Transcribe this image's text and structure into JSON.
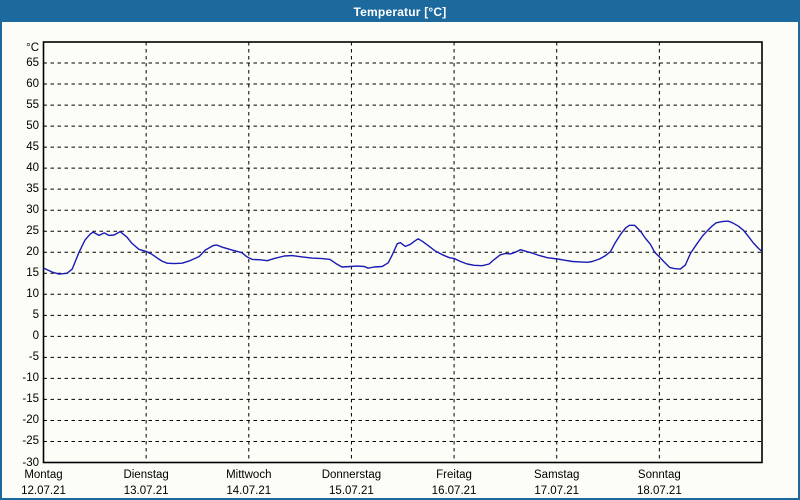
{
  "window": {
    "title": "Temperatur [°C]",
    "title_bar_color": "#1C699D",
    "border_color": "#1C699D",
    "background_color": "#FCFDF7"
  },
  "chart_data": {
    "type": "line",
    "title": "Temperatur [°C]",
    "ylabel": "°C",
    "xlabel": "",
    "ylim": [
      -30,
      70
    ],
    "y_ticks": [
      65,
      60,
      55,
      50,
      45,
      40,
      35,
      30,
      25,
      20,
      15,
      10,
      5,
      0,
      -5,
      -10,
      -15,
      -20,
      -25,
      -30
    ],
    "y_unit_label": "°C",
    "xlim_hours": [
      0,
      168
    ],
    "grid": "dashed-black",
    "legend": "none",
    "line_color": "#1A1AB4",
    "x_days": [
      {
        "name": "Montag",
        "date": "12.07.21"
      },
      {
        "name": "Dienstag",
        "date": "13.07.21"
      },
      {
        "name": "Mittwoch",
        "date": "14.07.21"
      },
      {
        "name": "Donnerstag",
        "date": "15.07.21"
      },
      {
        "name": "Freitag",
        "date": "16.07.21"
      },
      {
        "name": "Samstag",
        "date": "17.07.21"
      },
      {
        "name": "Sonntag",
        "date": "18.07.21"
      }
    ],
    "series": [
      {
        "name": "Temperatur",
        "points_hours_temp": [
          [
            0.1,
            16.2
          ],
          [
            2.0,
            15.3
          ],
          [
            3.6,
            14.8
          ],
          [
            5.5,
            15.0
          ],
          [
            6.7,
            16.0
          ],
          [
            8.3,
            20.0
          ],
          [
            9.7,
            22.9
          ],
          [
            10.9,
            24.3
          ],
          [
            11.6,
            24.8
          ],
          [
            13.0,
            24.0
          ],
          [
            14.2,
            24.6
          ],
          [
            15.3,
            24.0
          ],
          [
            16.5,
            24.1
          ],
          [
            17.9,
            24.9
          ],
          [
            19.5,
            23.6
          ],
          [
            20.7,
            22.1
          ],
          [
            22.3,
            20.7
          ],
          [
            24.0,
            20.2
          ],
          [
            25.4,
            19.5
          ],
          [
            26.6,
            18.6
          ],
          [
            27.7,
            17.9
          ],
          [
            28.9,
            17.4
          ],
          [
            30.5,
            17.3
          ],
          [
            32.4,
            17.4
          ],
          [
            34.0,
            17.9
          ],
          [
            36.4,
            19.0
          ],
          [
            37.8,
            20.5
          ],
          [
            39.7,
            21.6
          ],
          [
            40.6,
            21.7
          ],
          [
            41.8,
            21.2
          ],
          [
            44.1,
            20.5
          ],
          [
            46.4,
            19.9
          ],
          [
            47.6,
            18.9
          ],
          [
            48.8,
            18.3
          ],
          [
            50.7,
            18.2
          ],
          [
            52.3,
            18.0
          ],
          [
            53.9,
            18.5
          ],
          [
            56.3,
            19.1
          ],
          [
            58.1,
            19.2
          ],
          [
            60.5,
            18.9
          ],
          [
            62.8,
            18.6
          ],
          [
            65.2,
            18.5
          ],
          [
            67.0,
            18.3
          ],
          [
            68.4,
            17.3
          ],
          [
            69.8,
            16.5
          ],
          [
            71.7,
            16.6
          ],
          [
            73.4,
            16.7
          ],
          [
            75.0,
            16.6
          ],
          [
            75.9,
            16.2
          ],
          [
            77.3,
            16.5
          ],
          [
            79.2,
            16.6
          ],
          [
            80.6,
            17.5
          ],
          [
            81.6,
            19.5
          ],
          [
            82.7,
            22.0
          ],
          [
            83.4,
            22.3
          ],
          [
            84.6,
            21.4
          ],
          [
            85.8,
            21.9
          ],
          [
            86.7,
            22.6
          ],
          [
            87.6,
            23.2
          ],
          [
            88.6,
            22.6
          ],
          [
            90.2,
            21.4
          ],
          [
            91.6,
            20.3
          ],
          [
            93.3,
            19.4
          ],
          [
            94.9,
            18.7
          ],
          [
            96.1,
            18.5
          ],
          [
            97.5,
            17.8
          ],
          [
            99.1,
            17.2
          ],
          [
            100.7,
            16.9
          ],
          [
            102.6,
            16.8
          ],
          [
            104.2,
            17.2
          ],
          [
            105.4,
            18.3
          ],
          [
            106.8,
            19.4
          ],
          [
            108.0,
            19.7
          ],
          [
            109.2,
            19.6
          ],
          [
            110.3,
            20.0
          ],
          [
            111.5,
            20.6
          ],
          [
            112.9,
            20.2
          ],
          [
            114.3,
            19.8
          ],
          [
            116.0,
            19.2
          ],
          [
            117.8,
            18.7
          ],
          [
            120.2,
            18.4
          ],
          [
            121.8,
            18.1
          ],
          [
            123.7,
            17.8
          ],
          [
            125.5,
            17.7
          ],
          [
            127.2,
            17.6
          ],
          [
            128.3,
            17.8
          ],
          [
            130.0,
            18.4
          ],
          [
            131.4,
            19.2
          ],
          [
            132.6,
            20.2
          ],
          [
            133.7,
            22.3
          ],
          [
            134.9,
            24.2
          ],
          [
            136.1,
            25.8
          ],
          [
            137.0,
            26.4
          ],
          [
            138.2,
            26.4
          ],
          [
            139.6,
            25.0
          ],
          [
            140.7,
            23.4
          ],
          [
            141.9,
            21.9
          ],
          [
            142.9,
            20.0
          ],
          [
            144.0,
            18.9
          ],
          [
            145.2,
            17.6
          ],
          [
            146.4,
            16.4
          ],
          [
            147.5,
            16.1
          ],
          [
            148.9,
            16.0
          ],
          [
            150.1,
            17.0
          ],
          [
            151.3,
            19.8
          ],
          [
            152.7,
            21.9
          ],
          [
            154.1,
            23.9
          ],
          [
            155.2,
            25.1
          ],
          [
            156.4,
            26.3
          ],
          [
            157.3,
            27.0
          ],
          [
            158.7,
            27.3
          ],
          [
            160.1,
            27.4
          ],
          [
            161.1,
            27.0
          ],
          [
            162.5,
            26.2
          ],
          [
            163.7,
            25.2
          ],
          [
            164.8,
            23.8
          ],
          [
            166.0,
            22.2
          ],
          [
            167.2,
            20.9
          ],
          [
            167.9,
            20.3
          ]
        ]
      }
    ]
  }
}
